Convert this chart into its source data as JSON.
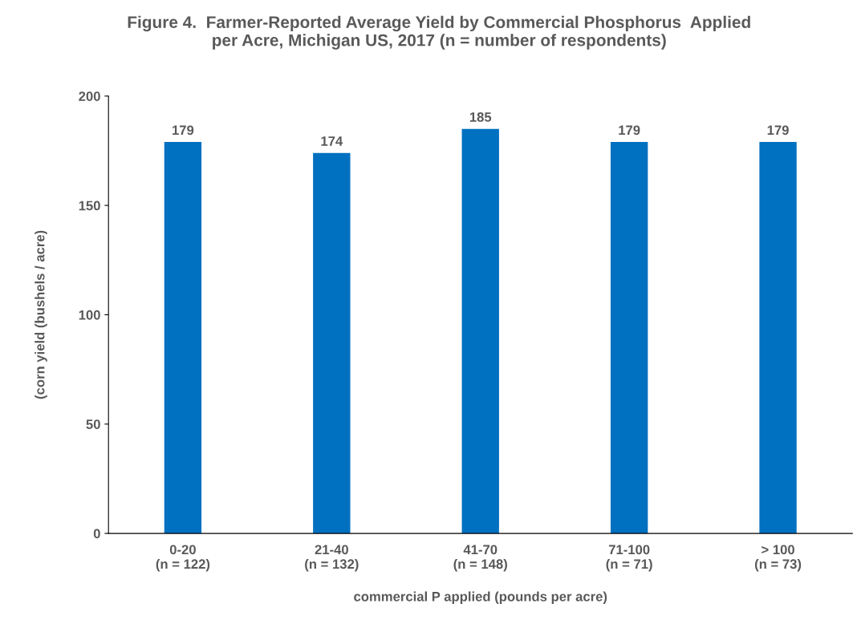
{
  "chart_data": {
    "type": "bar",
    "title": "Figure 4.  Farmer-Reported Average Yield by Commercial Phosphorus  Applied\nper Acre, Michigan US, 2017 (n = number of respondents)",
    "xlabel": "commercial P applied (pounds per acre)",
    "ylabel": "(corn yield (bushels / acre)",
    "categories": [
      "0-20\n(n = 122)",
      "21-40\n(n = 132)",
      "41-70\n(n = 148)",
      "71-100\n(n = 71)",
      "> 100\n(n = 73)"
    ],
    "values": [
      179,
      174,
      185,
      179,
      179
    ],
    "color": "#0070c0",
    "ylim": [
      0,
      200
    ],
    "yticks": [
      0,
      50,
      100,
      150,
      200
    ],
    "grid": false,
    "data_labels": true
  }
}
